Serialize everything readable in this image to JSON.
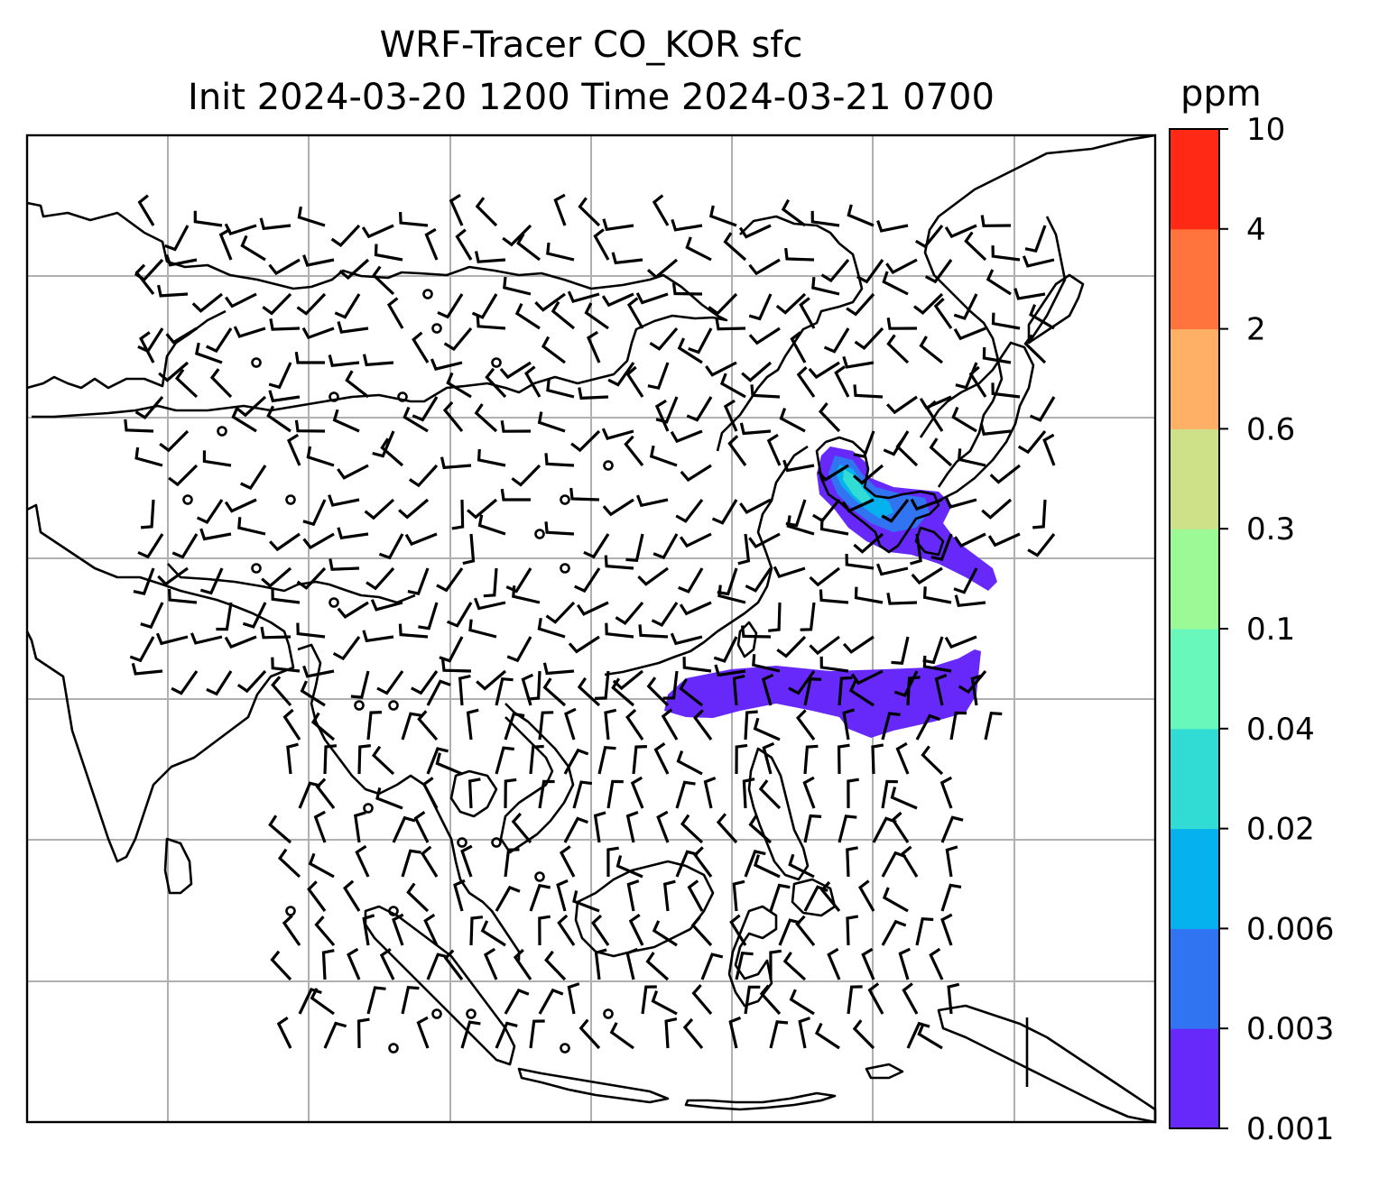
{
  "title": {
    "line1": "WRF-Tracer CO_KOR sfc",
    "line2": "Init 2024-03-20 1200 Time 2024-03-21 0700"
  },
  "colorbar": {
    "unit": "ppm",
    "levels": [
      "0.001",
      "0.003",
      "0.006",
      "0.02",
      "0.04",
      "0.1",
      "0.3",
      "0.6",
      "2",
      "4",
      "10"
    ],
    "colors": [
      "#6629fa",
      "#3174f2",
      "#05b2ed",
      "#30dcd4",
      "#69f8bc",
      "#9bf996",
      "#cfe188",
      "#fdb066",
      "#ff733c",
      "#ff2a16"
    ]
  },
  "map": {
    "background": "#ffffff",
    "gridline_color": "#b0b0b0",
    "coastline_color": "#000000"
  }
}
